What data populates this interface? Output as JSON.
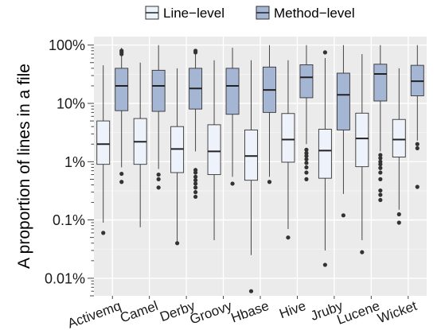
{
  "chart_data": {
    "type": "box",
    "title": "",
    "xlabel": "",
    "ylabel": "A proportion of lines in a file",
    "y_scale": "log10",
    "ylim": [
      0.005,
      140
    ],
    "yticks": [
      {
        "value": 0.01,
        "label": "0.01%"
      },
      {
        "value": 0.1,
        "label": "0.1%"
      },
      {
        "value": 1,
        "label": "1%"
      },
      {
        "value": 10,
        "label": "10%"
      },
      {
        "value": 100,
        "label": "100%"
      }
    ],
    "grid": true,
    "legend_position": "top",
    "categories": [
      "Activemq",
      "Camel",
      "Derby",
      "Groovy",
      "Hbase",
      "Hive",
      "Jruby",
      "Lucene",
      "Wicket"
    ],
    "series": [
      {
        "name": "Line−level",
        "color": "#eef3fb",
        "boxes": [
          {
            "whisker_low": 0.09,
            "q1": 0.9,
            "median": 2.0,
            "q3": 5.0,
            "whisker_high": 45,
            "outliers": [
              0.06
            ]
          },
          {
            "whisker_low": 0.075,
            "q1": 0.9,
            "median": 2.2,
            "q3": 5.5,
            "whisker_high": 50,
            "outliers": []
          },
          {
            "whisker_low": 0.04,
            "q1": 0.65,
            "median": 1.65,
            "q3": 4.0,
            "whisker_high": 40,
            "outliers": [
              0.04
            ]
          },
          {
            "whisker_low": 0.045,
            "q1": 0.6,
            "median": 1.5,
            "q3": 4.3,
            "whisker_high": 55,
            "outliers": []
          },
          {
            "whisker_low": 0.025,
            "q1": 0.48,
            "median": 1.25,
            "q3": 3.5,
            "whisker_high": 55,
            "outliers": [
              0.006
            ]
          },
          {
            "whisker_low": 0.07,
            "q1": 0.98,
            "median": 2.4,
            "q3": 6.7,
            "whisker_high": 55,
            "outliers": [
              0.05
            ]
          },
          {
            "whisker_low": 0.03,
            "q1": 0.52,
            "median": 1.55,
            "q3": 3.6,
            "whisker_high": 60,
            "outliers": [
              0.017,
              75
            ]
          },
          {
            "whisker_low": 0.045,
            "q1": 0.82,
            "median": 2.5,
            "q3": 6.8,
            "whisker_high": 70,
            "outliers": [
              0.028
            ]
          },
          {
            "whisker_low": 0.15,
            "q1": 1.2,
            "median": 2.4,
            "q3": 5.3,
            "whisker_high": 40,
            "outliers": [
              0.125,
              0.09
            ]
          }
        ]
      },
      {
        "name": "Method−level",
        "color": "#a4b6d3",
        "boxes": [
          {
            "whisker_low": 0.8,
            "q1": 7.5,
            "median": 20,
            "q3": 40,
            "whisker_high": 90,
            "outliers": [
              0.62,
              0.45,
              80,
              75,
              70
            ]
          },
          {
            "whisker_low": 0.75,
            "q1": 7.3,
            "median": 20,
            "q3": 37,
            "whisker_high": 100,
            "outliers": [
              0.6,
              0.5,
              0.36
            ]
          },
          {
            "whisker_low": 1.5,
            "q1": 8.0,
            "median": 18,
            "q3": 40,
            "whisker_high": 70,
            "outliers": [
              0.72,
              0.65,
              0.55,
              0.48,
              0.42,
              0.36,
              0.3,
              0.25,
              75,
              80
            ]
          },
          {
            "whisker_low": 0.55,
            "q1": 6.5,
            "median": 20,
            "q3": 40,
            "whisker_high": 90,
            "outliers": [
              0.42
            ]
          },
          {
            "whisker_low": 0.55,
            "q1": 7.0,
            "median": 17,
            "q3": 42,
            "whisker_high": 100,
            "outliers": [
              0.45
            ]
          },
          {
            "whisker_low": 2.0,
            "q1": 12.5,
            "median": 28,
            "q3": 46,
            "whisker_high": 100,
            "outliers": [
              1.6,
              1.4,
              1.25,
              1.1,
              0.95,
              0.8,
              0.65,
              0.5
            ]
          },
          {
            "whisker_low": 0.28,
            "q1": 3.5,
            "median": 14,
            "q3": 33,
            "whisker_high": 100,
            "outliers": [
              0.12
            ]
          },
          {
            "whisker_low": 1.5,
            "q1": 11,
            "median": 32,
            "q3": 47,
            "whisker_high": 100,
            "outliers": [
              1.3,
              1.15,
              1.0,
              0.9,
              0.78,
              0.65,
              0.5,
              0.32,
              0.27,
              0.22
            ]
          },
          {
            "whisker_low": 2.3,
            "q1": 13.5,
            "median": 24,
            "q3": 45,
            "whisker_high": 100,
            "outliers": [
              2.0,
              1.7,
              0.37
            ]
          }
        ]
      }
    ]
  }
}
